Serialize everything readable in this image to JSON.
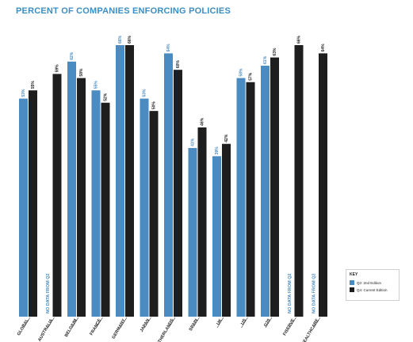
{
  "title": "PERCENT OF COMPANIES ENFORCING POLICIES",
  "colors": {
    "q2": "#4a8bc2",
    "q4": "#1e1e1e",
    "title": "#3a8fc4",
    "missing_label": "#4a8bc2"
  },
  "legend": {
    "title": "KEY",
    "items": [
      {
        "label": "Q2: 2nd Edition",
        "color": "#4a8bc2"
      },
      {
        "label": "Q4: Current Edition",
        "color": "#1e1e1e"
      }
    ]
  },
  "chart_data": {
    "type": "bar",
    "title": "PERCENT OF COMPANIES ENFORCING POLICIES",
    "categories": [
      "GLOBAL",
      "AUSTRALIA",
      "BELGIUM",
      "FRANCE",
      "GERMANY",
      "JAPAN",
      "NETHERLANDS",
      "SPAIN",
      "UK",
      "US",
      "G20",
      "FISERVE",
      "HEALTHCARE"
    ],
    "series": [
      {
        "name": "Q2: 2nd Edition",
        "values": [
          53,
          null,
          62,
          55,
          66,
          53,
          64,
          41,
          39,
          58,
          61,
          null,
          null
        ],
        "data_labels": [
          "53%",
          "",
          "62%",
          "55%",
          "66%",
          "53%",
          "64%",
          "41%",
          "39%",
          "58%",
          "61%",
          "",
          ""
        ]
      },
      {
        "name": "Q4: Current Edition",
        "values": [
          55,
          59,
          58,
          52,
          66,
          50,
          60,
          46,
          42,
          57,
          63,
          66,
          64
        ],
        "data_labels": [
          "55%",
          "59%",
          "58%",
          "52%",
          "66%",
          "50%",
          "60%",
          "46%",
          "42%",
          "57%",
          "63%",
          "66%",
          "64%"
        ]
      }
    ],
    "missing_labels": [
      "",
      "NO DATA FROM Q2",
      "",
      "",
      "",
      "",
      "",
      "",
      "",
      "",
      "",
      "NO DATA FROM Q2",
      "NO DATA FROM Q2"
    ],
    "ylim": [
      0,
      70
    ],
    "grid": false,
    "legend_position": "bottom-right"
  }
}
